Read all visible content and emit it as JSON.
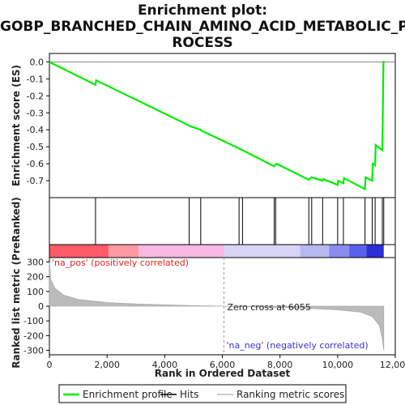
{
  "title_lines": [
    "Enrichment plot:",
    "GOBP_BRANCHED_CHAIN_AMINO_ACID_METABOLIC_P",
    "ROCESS"
  ],
  "chart_data": {
    "type": "line",
    "x_axis": {
      "label": "Rank in Ordered Dataset",
      "range": [
        0,
        12000
      ],
      "ticks": [
        0,
        2000,
        4000,
        6000,
        8000,
        10000,
        12000
      ],
      "tick_labels": [
        "0",
        "2,000",
        "4,000",
        "6,000",
        "8,000",
        "10,000",
        "12,000"
      ]
    },
    "es_panel": {
      "ylabel": "Enrichment score (ES)",
      "ylim": [
        -0.8,
        0.05
      ],
      "yticks": [
        0.0,
        -0.1,
        -0.2,
        -0.3,
        -0.4,
        -0.5,
        -0.6,
        -0.7
      ],
      "ytick_labels": [
        "0.0",
        "-0.1",
        "-0.2",
        "-0.3",
        "-0.4",
        "-0.5",
        "-0.6",
        "-0.7"
      ],
      "series_color": "#00ee00",
      "points": [
        [
          0,
          0.0
        ],
        [
          1600,
          -0.135
        ],
        [
          1620,
          -0.108
        ],
        [
          4850,
          -0.375
        ],
        [
          4870,
          -0.378
        ],
        [
          5250,
          -0.4
        ],
        [
          5270,
          -0.404
        ],
        [
          6580,
          -0.51
        ],
        [
          6700,
          -0.52
        ],
        [
          7800,
          -0.615
        ],
        [
          7820,
          -0.61
        ],
        [
          7880,
          -0.6
        ],
        [
          9000,
          -0.695
        ],
        [
          9020,
          -0.69
        ],
        [
          9100,
          -0.68
        ],
        [
          9480,
          -0.7
        ],
        [
          9500,
          -0.69
        ],
        [
          10000,
          -0.725
        ],
        [
          10020,
          -0.7
        ],
        [
          10200,
          -0.715
        ],
        [
          10220,
          -0.685
        ],
        [
          10950,
          -0.75
        ],
        [
          10970,
          -0.68
        ],
        [
          11200,
          -0.7
        ],
        [
          11220,
          -0.6
        ],
        [
          11300,
          -0.61
        ],
        [
          11320,
          -0.49
        ],
        [
          11550,
          -0.52
        ],
        [
          11570,
          -0.27
        ],
        [
          11590,
          0.0
        ],
        [
          11610,
          0.005
        ]
      ]
    },
    "hits": [
      1600,
      4850,
      5250,
      6580,
      6700,
      7800,
      7850,
      9000,
      9100,
      9480,
      10000,
      10200,
      10950,
      11200,
      11300,
      11550,
      11600
    ],
    "rank_metric_panel": {
      "ylabel": "Ranked list metric (PreRanked)",
      "ylim": [
        -330,
        330
      ],
      "yticks": [
        300,
        200,
        100,
        0,
        -100,
        -200,
        -300
      ],
      "ytick_labels": [
        "300",
        "200",
        "100",
        "0",
        "-100",
        "-200",
        "-300"
      ],
      "zero_cross_label": "Zero cross at 6055",
      "zero_cross_rank": 6055,
      "pos_label": "'na_pos' (positively correlated)",
      "neg_label": "'na_neg' (negatively correlated)",
      "n_genes": 11600,
      "profile": [
        [
          0,
          300
        ],
        [
          50,
          180
        ],
        [
          200,
          120
        ],
        [
          500,
          75
        ],
        [
          1000,
          45
        ],
        [
          2000,
          25
        ],
        [
          3000,
          15
        ],
        [
          4000,
          9
        ],
        [
          5000,
          4
        ],
        [
          6055,
          0
        ],
        [
          7000,
          -4
        ],
        [
          8000,
          -9
        ],
        [
          9000,
          -15
        ],
        [
          10000,
          -25
        ],
        [
          10800,
          -40
        ],
        [
          11200,
          -70
        ],
        [
          11450,
          -130
        ],
        [
          11550,
          -220
        ],
        [
          11600,
          -300
        ]
      ]
    },
    "legend": {
      "items": [
        {
          "label": "Enrichment profile",
          "color": "#00ee00"
        },
        {
          "label": "Hits",
          "color": "#000000"
        },
        {
          "label": "Ranking metric scores",
          "color": "#bbbbbb"
        }
      ]
    },
    "colors": {
      "heatmap_segments": [
        {
          "from": 0,
          "to": 2050,
          "color": "#ff5a67"
        },
        {
          "from": 2050,
          "to": 3100,
          "color": "#ff9aa3"
        },
        {
          "from": 3100,
          "to": 6055,
          "color": "#f5b9e3"
        },
        {
          "from": 6055,
          "to": 8700,
          "color": "#d8d4f5"
        },
        {
          "from": 8700,
          "to": 9700,
          "color": "#b8b8f2"
        },
        {
          "from": 9700,
          "to": 10400,
          "color": "#8a8cf0"
        },
        {
          "from": 10400,
          "to": 11000,
          "color": "#5a60e8"
        },
        {
          "from": 11000,
          "to": 11600,
          "color": "#2a2fd6"
        }
      ],
      "pos_text": "#dd2222",
      "neg_text": "#3333cc",
      "fill": "#bbbbbb"
    }
  }
}
